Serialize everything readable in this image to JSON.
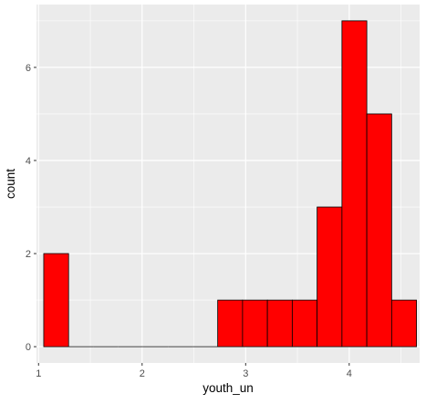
{
  "chart_data": {
    "type": "bar",
    "xlabel": "youth_un",
    "ylabel": "count",
    "xlim": [
      0.98,
      4.68
    ],
    "ylim": [
      -0.35,
      7.35
    ],
    "x_ticks": [
      1,
      2,
      3,
      4
    ],
    "y_ticks": [
      0,
      2,
      4,
      6
    ],
    "x_tick_labels": [
      "1",
      "2",
      "3",
      "4"
    ],
    "y_tick_labels": [
      "0",
      "2",
      "4",
      "6"
    ],
    "grid": true,
    "bins": [
      {
        "x0": 1.05,
        "x1": 1.29,
        "count": 2
      },
      {
        "x0": 1.29,
        "x1": 1.53,
        "count": 0
      },
      {
        "x0": 1.53,
        "x1": 1.77,
        "count": 0
      },
      {
        "x0": 1.77,
        "x1": 2.01,
        "count": 0
      },
      {
        "x0": 2.01,
        "x1": 2.25,
        "count": 0
      },
      {
        "x0": 2.25,
        "x1": 2.49,
        "count": 0
      },
      {
        "x0": 2.49,
        "x1": 2.73,
        "count": 0
      },
      {
        "x0": 2.73,
        "x1": 2.97,
        "count": 1
      },
      {
        "x0": 2.97,
        "x1": 3.21,
        "count": 1
      },
      {
        "x0": 3.21,
        "x1": 3.45,
        "count": 1
      },
      {
        "x0": 3.45,
        "x1": 3.69,
        "count": 1
      },
      {
        "x0": 3.69,
        "x1": 3.93,
        "count": 3
      },
      {
        "x0": 3.93,
        "x1": 4.17,
        "count": 7
      },
      {
        "x0": 4.17,
        "x1": 4.41,
        "count": 5
      },
      {
        "x0": 4.41,
        "x1": 4.65,
        "count": 1
      }
    ],
    "colors": {
      "bar_fill": "#FF0000",
      "bar_outline": "#000000",
      "panel_background": "#EBEBEB",
      "grid_major": "#FFFFFF",
      "tick_text": "#4D4D4D",
      "tick_mark": "#333333"
    }
  }
}
